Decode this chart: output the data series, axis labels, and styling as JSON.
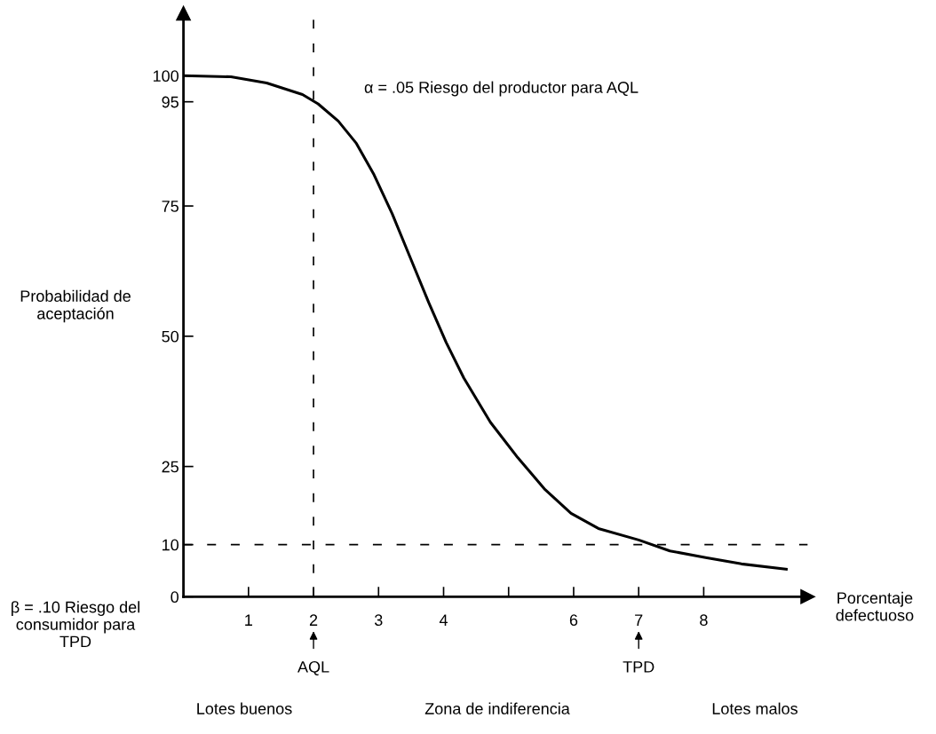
{
  "chart_data": {
    "type": "line",
    "xlabel": "Porcentaje defectuoso",
    "ylabel": "Probabilidad de aceptación",
    "x": [
      0,
      0.73,
      1.28,
      1.83,
      2.07,
      2.38,
      2.66,
      2.93,
      3.21,
      3.49,
      3.77,
      4.04,
      4.31,
      4.72,
      5.14,
      5.55,
      5.96,
      6.38,
      7,
      7.48,
      8.03,
      8.58,
      9.27
    ],
    "series": [
      {
        "color": "#000000",
        "values": [
          100,
          99.8,
          98.6,
          96.4,
          94.6,
          91.3,
          87,
          81,
          73.5,
          65,
          56.5,
          48.8,
          42,
          33.5,
          26.7,
          20.7,
          16,
          13.1,
          10.9,
          8.8,
          7.5,
          6.3,
          5.3
        ]
      }
    ],
    "xlim": [
      0,
      9.6
    ],
    "ylim": [
      0,
      112
    ],
    "xticks": [
      1,
      2,
      3,
      4,
      {
        "value": 5,
        "label": null
      },
      6,
      7,
      8
    ],
    "yticks": [
      0,
      10,
      25,
      50,
      75,
      95,
      100
    ],
    "ref_lines": [
      {
        "axis": "x",
        "value": 2,
        "line_style": "dashed",
        "color": "#000000"
      },
      {
        "axis": "y",
        "value": 10,
        "line_style": "dashed",
        "color": "#000000"
      }
    ],
    "annotations": [
      "α = .05 Riesgo del productor para AQL",
      "β = .10 Riesgo del consumidor para TPD",
      "AQL",
      "TPD",
      "Lotes buenos",
      "Zona de indiferencia",
      "Lotes malos"
    ],
    "grid": false,
    "legend": false,
    "marker": "none",
    "line_style": "solid"
  }
}
